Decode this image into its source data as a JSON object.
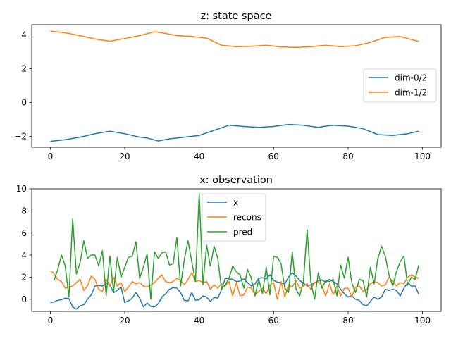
{
  "chart_data": [
    {
      "type": "line",
      "title": "z: state space",
      "xlim": [
        -5,
        105
      ],
      "ylim": [
        -2.65,
        4.6
      ],
      "xticks": [
        0,
        20,
        40,
        60,
        80,
        100
      ],
      "yticks": [
        -2,
        0,
        2,
        4
      ],
      "grid": false,
      "legend_position": "center-right",
      "series": [
        {
          "name": "dim-0/2",
          "color": "#1f77b4",
          "x": [
            0,
            4,
            8,
            12,
            16,
            20,
            22,
            24,
            26,
            29,
            32,
            36,
            40,
            44,
            48,
            52,
            56,
            60,
            64,
            68,
            72,
            74,
            76,
            80,
            84,
            88,
            92,
            96,
            99
          ],
          "y": [
            -2.3,
            -2.2,
            -2.05,
            -1.85,
            -1.7,
            -1.85,
            -1.95,
            -2.05,
            -2.1,
            -2.28,
            -2.15,
            -2.05,
            -1.95,
            -1.65,
            -1.35,
            -1.42,
            -1.48,
            -1.42,
            -1.3,
            -1.35,
            -1.48,
            -1.4,
            -1.35,
            -1.4,
            -1.55,
            -1.9,
            -1.95,
            -1.85,
            -1.7
          ]
        },
        {
          "name": "dim-1/2",
          "color": "#ff7f0e",
          "x": [
            0,
            4,
            8,
            12,
            16,
            20,
            24,
            28,
            30,
            34,
            38,
            42,
            46,
            50,
            54,
            58,
            62,
            66,
            70,
            74,
            78,
            82,
            86,
            90,
            94,
            99
          ],
          "y": [
            4.22,
            4.12,
            3.95,
            3.75,
            3.62,
            3.78,
            3.95,
            4.18,
            4.12,
            3.95,
            3.9,
            3.8,
            3.38,
            3.3,
            3.32,
            3.38,
            3.28,
            3.25,
            3.3,
            3.38,
            3.3,
            3.35,
            3.55,
            3.85,
            3.9,
            3.6
          ]
        }
      ]
    },
    {
      "type": "line",
      "title": "x: observation",
      "xlim": [
        -5,
        105
      ],
      "ylim": [
        -1.1,
        10
      ],
      "xticks": [
        0,
        20,
        40,
        60,
        80,
        100
      ],
      "yticks": [
        0,
        2,
        4,
        6,
        8,
        10
      ],
      "grid": false,
      "legend_position": "upper-center",
      "series": [
        {
          "name": "x",
          "color": "#1f77b4",
          "x": [
            0,
            1,
            2,
            3,
            4,
            5,
            6,
            7,
            8,
            9,
            10,
            11,
            12,
            13,
            14,
            15,
            16,
            17,
            18,
            19,
            20,
            21,
            22,
            23,
            24,
            25,
            26,
            27,
            28,
            29,
            30,
            31,
            32,
            33,
            34,
            35,
            36,
            37,
            38,
            39,
            40,
            41,
            42,
            43,
            44,
            45,
            46,
            47,
            48,
            49,
            50,
            51,
            52,
            53,
            54,
            55,
            56,
            57,
            58,
            59,
            60,
            61,
            62,
            63,
            64,
            65,
            66,
            67,
            68,
            69,
            70,
            71,
            72,
            73,
            74,
            75,
            76,
            77,
            78,
            79,
            80,
            81,
            82,
            83,
            84,
            85,
            86,
            87,
            88,
            89,
            90,
            91,
            92,
            93,
            94,
            95,
            96,
            97,
            98,
            99
          ],
          "y": [
            -0.3,
            -0.25,
            -0.1,
            -0.05,
            0.1,
            0.05,
            -0.7,
            -0.9,
            -0.6,
            -0.5,
            0.0,
            0.4,
            1.2,
            1.25,
            1.2,
            1.5,
            1.3,
            0.6,
            0.8,
            1.1,
            -0.3,
            -0.15,
            0.1,
            0.6,
            0.1,
            -0.7,
            -0.35,
            -0.65,
            -0.7,
            -0.4,
            0.2,
            0.5,
            0.9,
            1.05,
            1.0,
            0.6,
            -0.1,
            -0.15,
            0.6,
            -0.1,
            -0.05,
            0.3,
            0.2,
            -0.2,
            0.15,
            0.1,
            0.85,
            1.9,
            1.85,
            1.8,
            1.6,
            1.65,
            1.85,
            1.5,
            1.2,
            1.4,
            1.9,
            1.95,
            1.85,
            2.2,
            1.7,
            1.55,
            1.5,
            1.4,
            2.0,
            2.4,
            2.1,
            1.7,
            1.45,
            1.2,
            1.3,
            1.5,
            1.65,
            1.75,
            1.55,
            1.8,
            1.6,
            1.4,
            0.9,
            0.5,
            0.2,
            0.3,
            0.0,
            -0.1,
            -0.5,
            -0.6,
            -0.2,
            0.2,
            0.0,
            0.2,
            0.9,
            0.8,
            0.9,
            0.8,
            0.3,
            1.0,
            1.5,
            1.2,
            1.2,
            0.45
          ]
        },
        {
          "name": "recons",
          "color": "#ff7f0e",
          "x": [
            0,
            1,
            2,
            3,
            4,
            5,
            6,
            7,
            8,
            9,
            10,
            11,
            12,
            13,
            14,
            15,
            16,
            17,
            18,
            19,
            20,
            21,
            22,
            23,
            24,
            25,
            26,
            27,
            28,
            29,
            30,
            31,
            32,
            33,
            34,
            35,
            36,
            37,
            38,
            39,
            40,
            41,
            42,
            43,
            44,
            45,
            46,
            47,
            48,
            49,
            50,
            51,
            52,
            53,
            54,
            55,
            56,
            57,
            58,
            59,
            60,
            61,
            62,
            63,
            64,
            65,
            66,
            67,
            68,
            69,
            70,
            71,
            72,
            73,
            74,
            75,
            76,
            77,
            78,
            79,
            80,
            81,
            82,
            83,
            84,
            85,
            86,
            87,
            88,
            89,
            90,
            91,
            92,
            93,
            94,
            95,
            96,
            97,
            98,
            99
          ],
          "y": [
            2.6,
            2.3,
            1.8,
            1.6,
            1.0,
            1.1,
            1.2,
            1.5,
            1.8,
            0.8,
            1.2,
            2.1,
            1.8,
            0.9,
            0.7,
            1.8,
            1.2,
            2.0,
            1.2,
            1.5,
            0.7,
            1.1,
            1.6,
            1.4,
            1.5,
            1.2,
            1.1,
            1.3,
            1.5,
            1.9,
            2.2,
            1.6,
            1.5,
            1.6,
            1.9,
            1.7,
            1.3,
            1.8,
            2.4,
            1.6,
            1.7,
            1.5,
            1.6,
            0.9,
            1.3,
            1.0,
            1.4,
            1.2,
            1.6,
            0.3,
            1.5,
            0.3,
            0.4,
            1.1,
            1.0,
            0.4,
            0.7,
            1.0,
            0.5,
            1.3,
            1.5,
            0.0,
            1.6,
            0.2,
            1.3,
            1.1,
            1.7,
            1.0,
            1.2,
            1.4,
            0.9,
            1.5,
            1.6,
            1.2,
            0.3,
            1.4,
            0.4,
            1.2,
            0.3,
            1.0,
            1.0,
            0.2,
            1.1,
            1.2,
            0.7,
            0.9,
            1.4,
            1.6,
            1.5,
            1.2,
            1.3,
            2.0,
            1.6,
            1.2,
            1.5,
            1.4,
            2.0,
            2.2,
            2.0,
            1.9
          ]
        },
        {
          "name": "pred",
          "color": "#2ca02c",
          "x": [
            1,
            2,
            3,
            4,
            5,
            6,
            7,
            8,
            9,
            10,
            11,
            12,
            13,
            14,
            15,
            16,
            17,
            18,
            19,
            20,
            21,
            22,
            23,
            24,
            25,
            26,
            27,
            28,
            29,
            30,
            31,
            32,
            33,
            34,
            35,
            36,
            37,
            38,
            39,
            40,
            41,
            42,
            43,
            44,
            45,
            46,
            47,
            48,
            49,
            50,
            51,
            52,
            53,
            54,
            55,
            56,
            57,
            58,
            59,
            60,
            61,
            62,
            63,
            64,
            65,
            66,
            67,
            68,
            69,
            70,
            71,
            72,
            73,
            74,
            75,
            76,
            77,
            78,
            79,
            80,
            81,
            82,
            83,
            84,
            85,
            86,
            87,
            88,
            89,
            90,
            91,
            92,
            93,
            94,
            95,
            96,
            97,
            98,
            99
          ],
          "y": [
            1.7,
            2.7,
            4.0,
            3.0,
            0.2,
            7.3,
            2.3,
            3.3,
            5.3,
            3.7,
            4.0,
            4.0,
            3.0,
            4.4,
            0.3,
            3.9,
            0.7,
            3.8,
            2.0,
            2.9,
            3.8,
            3.9,
            5.2,
            1.9,
            2.9,
            4.1,
            0.0,
            4.3,
            3.7,
            4.2,
            4.3,
            3.1,
            3.2,
            5.6,
            1.2,
            3.6,
            5.3,
            3.4,
            1.6,
            9.6,
            1.3,
            4.9,
            3.0,
            4.8,
            3.7,
            0.9,
            1.3,
            1.9,
            3.0,
            2.5,
            2.2,
            1.0,
            2.7,
            1.9,
            0.3,
            1.8,
            0.5,
            2.9,
            0.4,
            3.9,
            3.8,
            3.2,
            1.0,
            0.6,
            4.3,
            0.9,
            0.3,
            1.6,
            6.3,
            1.5,
            0.0,
            2.4,
            1.0,
            1.7,
            1.6,
            1.8,
            0.3,
            3.1,
            1.9,
            3.8,
            1.5,
            0.6,
            1.8,
            1.7,
            0.2,
            2.9,
            1.4,
            3.7,
            4.8,
            3.9,
            2.2,
            1.2,
            2.5,
            3.4,
            3.9,
            1.3,
            2.0,
            1.8,
            3.1
          ]
        }
      ]
    }
  ]
}
